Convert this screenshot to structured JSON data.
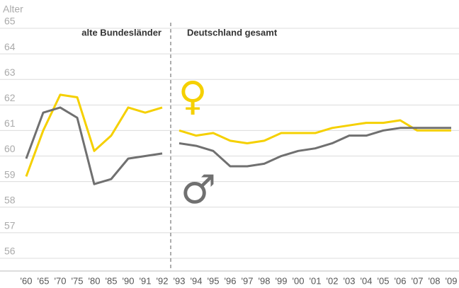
{
  "chart_data": {
    "type": "line",
    "ylabel": "Alter",
    "ylim": [
      55.5,
      65
    ],
    "yticks": [
      56,
      57,
      58,
      59,
      60,
      61,
      62,
      63,
      64,
      65
    ],
    "grid": true,
    "series": [
      {
        "name": "♀",
        "color": "#f5d000"
      },
      {
        "name": "♂",
        "color": "#707070"
      }
    ],
    "panels": [
      {
        "title": "alte Bundesländer",
        "categories": [
          "'60",
          "'65",
          "'70",
          "'75",
          "'80",
          "'85",
          "'90",
          "'91",
          "'92"
        ],
        "series": [
          {
            "values": [
              59.2,
              61.0,
              62.4,
              62.3,
              60.2,
              60.8,
              61.9,
              61.7,
              61.9
            ]
          },
          {
            "values": [
              59.9,
              61.7,
              61.9,
              61.5,
              58.9,
              59.1,
              59.9,
              60.0,
              60.1
            ]
          }
        ]
      },
      {
        "title": "Deutschland gesamt",
        "categories": [
          "'93",
          "'94",
          "'95",
          "'96",
          "'97",
          "'98",
          "'99",
          "'00",
          "'01",
          "'02",
          "'03",
          "'04",
          "'05",
          "'06",
          "'07",
          "'08",
          "'09"
        ],
        "series": [
          {
            "values": [
              61.0,
              60.8,
              60.9,
              60.6,
              60.5,
              60.6,
              60.9,
              60.9,
              60.9,
              61.1,
              61.2,
              61.3,
              61.3,
              61.4,
              61.0,
              61.0,
              61.0
            ]
          },
          {
            "values": [
              60.5,
              60.4,
              60.2,
              59.6,
              59.6,
              59.7,
              60.0,
              60.2,
              60.3,
              60.5,
              60.8,
              60.8,
              61.0,
              61.1,
              61.1,
              61.1,
              61.1
            ]
          }
        ]
      }
    ]
  }
}
